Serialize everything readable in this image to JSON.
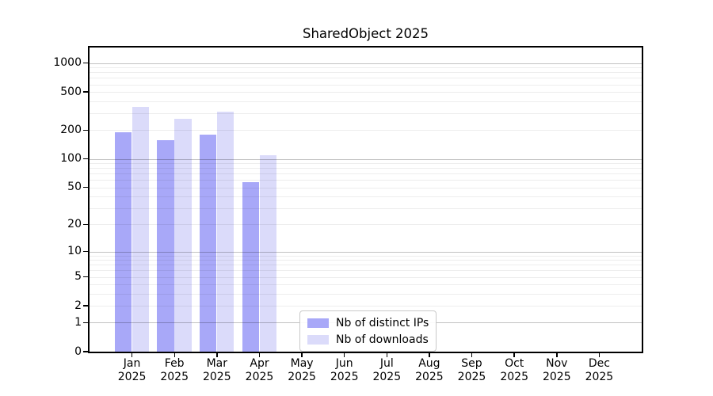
{
  "title": "SharedObject 2025",
  "chart_data": {
    "type": "bar",
    "title": "SharedObject 2025",
    "categories": [
      "Jan 2025",
      "Feb 2025",
      "Mar 2025",
      "Apr 2025",
      "May 2025",
      "Jun 2025",
      "Jul 2025",
      "Aug 2025",
      "Sep 2025",
      "Oct 2025",
      "Nov 2025",
      "Dec 2025"
    ],
    "x_tick_lines": [
      [
        "Jan",
        "2025"
      ],
      [
        "Feb",
        "2025"
      ],
      [
        "Mar",
        "2025"
      ],
      [
        "Apr",
        "2025"
      ],
      [
        "May",
        "2025"
      ],
      [
        "Jun",
        "2025"
      ],
      [
        "Jul",
        "2025"
      ],
      [
        "Aug",
        "2025"
      ],
      [
        "Sep",
        "2025"
      ],
      [
        "Oct",
        "2025"
      ],
      [
        "Nov",
        "2025"
      ],
      [
        "Dec",
        "2025"
      ]
    ],
    "series": [
      {
        "name": "Nb of distinct IPs",
        "color": "#a8a8f8",
        "values": [
          190,
          158,
          178,
          57,
          0,
          0,
          0,
          0,
          0,
          0,
          0,
          0
        ]
      },
      {
        "name": "Nb of downloads",
        "color": "#dbdbfa",
        "values": [
          350,
          265,
          310,
          110,
          0,
          0,
          0,
          0,
          0,
          0,
          0,
          0
        ]
      }
    ],
    "yscale": "log1p",
    "yticks": [
      0,
      1,
      2,
      5,
      10,
      20,
      50,
      100,
      200,
      500,
      1000
    ],
    "ylim": [
      0,
      1450
    ],
    "xlabel": "",
    "ylabel": "",
    "grid": "on",
    "legend": {
      "position": "inside-bottom-center",
      "entries": [
        "Nb of distinct IPs",
        "Nb of downloads"
      ]
    }
  }
}
